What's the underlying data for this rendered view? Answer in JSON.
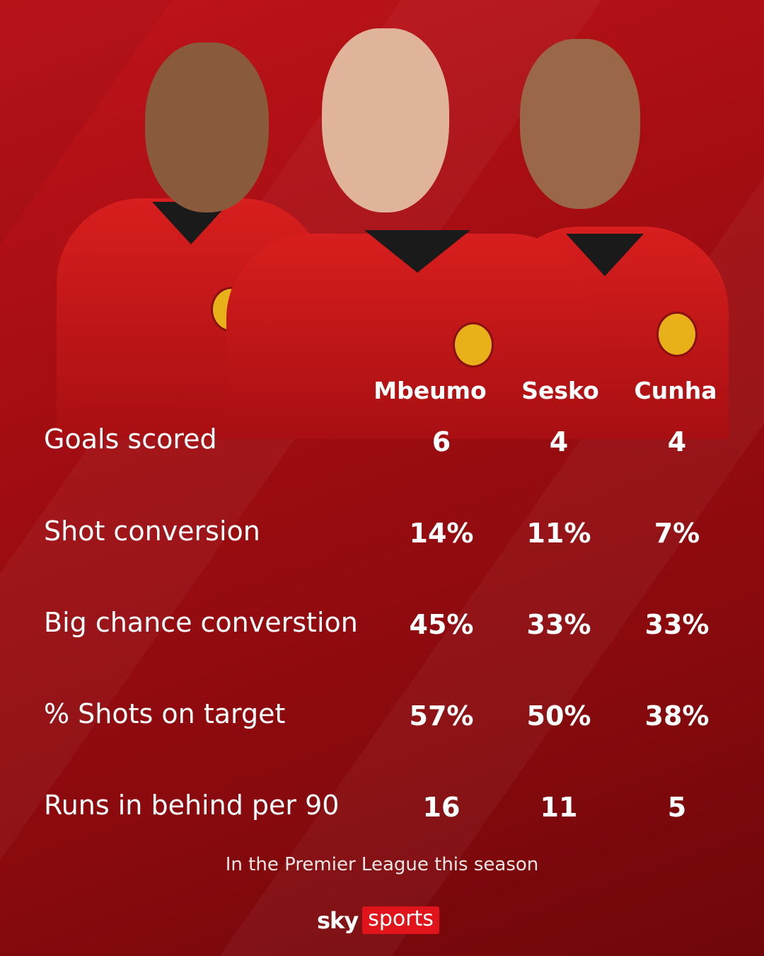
{
  "players": [
    "Mbeumo",
    "Sesko",
    "Cunha"
  ],
  "rows": [
    {
      "label": "Goals scored",
      "values": [
        "6",
        "4",
        "4"
      ]
    },
    {
      "label": "Shot conversion",
      "values": [
        "14%",
        "11%",
        "7%"
      ]
    },
    {
      "label": "Big chance converstion",
      "values": [
        "45%",
        "33%",
        "33%"
      ]
    },
    {
      "label": "% Shots on target",
      "values": [
        "57%",
        "50%",
        "38%"
      ]
    },
    {
      "label": "Runs in behind per 90",
      "values": [
        "16",
        "11",
        "5"
      ]
    }
  ],
  "footer": "In the Premier League this season",
  "logo": {
    "sky": "sky",
    "sports": "sports"
  },
  "colors": {
    "background": "#a30d12",
    "logo_red": "#e1141c"
  }
}
